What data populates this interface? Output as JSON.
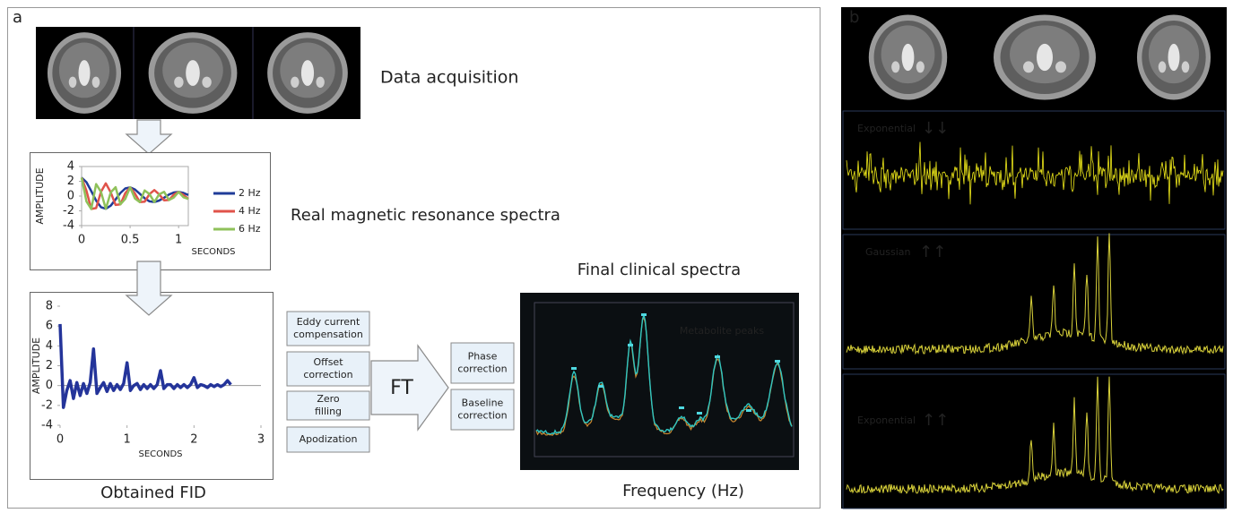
{
  "panel_a": {
    "label": "a",
    "mri_caption": "Data acquisition",
    "spectra_caption": "Real magnetic resonance spectra",
    "fid_caption": "Obtained FID",
    "processing_steps": [
      {
        "lines": [
          "Eddy current",
          "compensation"
        ]
      },
      {
        "lines": [
          "Offset",
          "correction"
        ]
      },
      {
        "lines": [
          "Zero",
          "filling"
        ]
      },
      {
        "lines": [
          "Apodization"
        ]
      }
    ],
    "transform": "FT",
    "post_steps": [
      {
        "lines": [
          "Phase",
          "correction"
        ]
      },
      {
        "lines": [
          "Baseline",
          "correction"
        ]
      }
    ],
    "clinical_title": "Final clinical spectra",
    "clinical_annotation": "Metabolite peaks",
    "clinical_caption": "Frequency (Hz)"
  },
  "panel_b": {
    "label": "b",
    "traces": [
      {
        "label": "Exponential",
        "arrows": "↓↓"
      },
      {
        "label": "Gaussian",
        "arrows": "↑↑"
      },
      {
        "label": "Exponential",
        "arrows": "↑↑"
      }
    ]
  },
  "chart_data": [
    {
      "type": "line",
      "x_label": "SECONDS",
      "y_label": "AMPLITUDE",
      "x": [
        0,
        0.05,
        0.1,
        0.15,
        0.2,
        0.25,
        0.3,
        0.35,
        0.4,
        0.45,
        0.5,
        0.55,
        0.6,
        0.65,
        0.7,
        0.75,
        0.8,
        0.85,
        0.9,
        0.95,
        1,
        1.05,
        1.1
      ],
      "series": [
        {
          "name": "2 Hz",
          "color": "#1f3c99",
          "values": [
            2.5,
            1.88,
            0.67,
            -0.62,
            -1.5,
            -1.72,
            -1.3,
            -0.46,
            0.42,
            1.03,
            1.18,
            0.89,
            0.32,
            -0.29,
            -0.71,
            -0.81,
            -0.61,
            -0.22,
            0.2,
            0.49,
            0.56,
            0.42,
            0.15
          ]
        },
        {
          "name": "4 Hz",
          "color": "#e0534a",
          "values": [
            2.5,
            0.72,
            -1.74,
            -1.62,
            0.57,
            1.72,
            0.5,
            -1.2,
            -1.11,
            0.39,
            1.18,
            0.34,
            -0.83,
            -0.76,
            0.27,
            0.81,
            0.23,
            -0.57,
            -0.53,
            0.19,
            0.56,
            0.16,
            -0.39
          ]
        },
        {
          "name": "6 Hz",
          "color": "#8fc15a",
          "values": [
            2.5,
            -0.72,
            -1.74,
            1.62,
            0.57,
            -1.72,
            0.5,
            1.2,
            -1.11,
            -0.39,
            1.18,
            -0.34,
            -0.83,
            0.76,
            0.27,
            -0.81,
            0.23,
            0.57,
            -0.53,
            -0.19,
            0.56,
            -0.16,
            -0.39
          ]
        }
      ],
      "xlim": [
        0,
        1.1
      ],
      "ylim": [
        -4,
        4
      ],
      "xticks": [
        0,
        0.5,
        1
      ],
      "yticks": [
        -4,
        -2,
        0,
        2,
        4
      ]
    },
    {
      "type": "line",
      "x_label": "SECONDS",
      "y_label": "AMPLITUDE",
      "x": [
        0,
        0.05,
        0.1,
        0.15,
        0.2,
        0.25,
        0.3,
        0.35,
        0.4,
        0.45,
        0.5,
        0.55,
        0.6,
        0.65,
        0.7,
        0.75,
        0.8,
        0.85,
        0.9,
        0.95,
        1,
        1.05,
        1.1,
        1.15,
        1.2,
        1.25,
        1.3,
        1.35,
        1.4,
        1.45,
        1.5,
        1.55,
        1.6,
        1.65,
        1.7,
        1.75,
        1.8,
        1.85,
        1.9,
        1.95,
        2,
        2.05,
        2.1,
        2.15,
        2.2,
        2.25,
        2.3,
        2.35,
        2.4,
        2.45,
        2.5,
        2.55
      ],
      "series": [
        {
          "color": "#24349a",
          "values": [
            6.2,
            -2.2,
            -0.5,
            0.5,
            -1.3,
            0.3,
            -1.0,
            0.2,
            -0.8,
            0.3,
            3.7,
            -0.8,
            -0.2,
            0.3,
            -0.6,
            0.2,
            -0.5,
            0.1,
            -0.4,
            0.2,
            2.3,
            -0.5,
            0,
            0.2,
            -0.4,
            0.1,
            -0.3,
            0.1,
            -0.3,
            0.1,
            1.5,
            -0.3,
            0.1,
            0.1,
            -0.3,
            0.1,
            -0.2,
            0.1,
            -0.2,
            0.1,
            0.8,
            -0.2,
            0.1,
            0,
            -0.2,
            0.1,
            -0.1,
            0.1,
            -0.1,
            0.1,
            0.5,
            0.1
          ]
        }
      ],
      "xlim": [
        0,
        3
      ],
      "ylim": [
        -4,
        8
      ],
      "xticks": [
        0,
        1,
        2,
        3
      ],
      "yticks": [
        -4,
        -2,
        0,
        2,
        4,
        6,
        8
      ]
    }
  ]
}
